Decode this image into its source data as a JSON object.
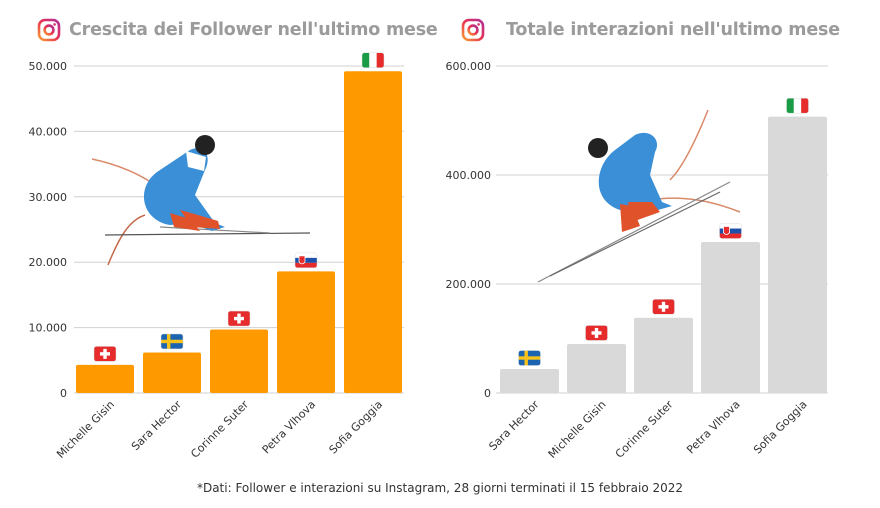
{
  "colors": {
    "left_bar": "#FF9900",
    "right_bar": "#D9D9D9",
    "grid": "#d0d0d0",
    "axis_text": "#333333",
    "title": "#9b9b9b"
  },
  "icons": [
    "instagram-icon",
    "skier-illustration"
  ],
  "footnote": "*Dati: Follower e interazioni su Instagram, 28 giorni terminati il 15 febbraio 2022",
  "chart_data": [
    {
      "type": "bar",
      "title": "Crescita dei Follower nell'ultimo mese",
      "categories": [
        "Michelle Gisin",
        "Sara Hector",
        "Corinne Suter",
        "Petra Vlhova",
        "Sofia Goggia"
      ],
      "flags": [
        "CH",
        "SE",
        "CH",
        "SK",
        "IT"
      ],
      "values": [
        4300,
        6200,
        9700,
        18600,
        49200
      ],
      "ylim": [
        0,
        50000
      ],
      "yticks": [
        0,
        10000,
        20000,
        30000,
        40000,
        50000
      ],
      "ytick_labels": [
        "0",
        "10.000",
        "20.000",
        "30.000",
        "40.000",
        "50.000"
      ],
      "grid": true
    },
    {
      "type": "bar",
      "title": "Totale interazioni nell'ultimo mese",
      "categories": [
        "Sara Hector",
        "Michelle Gisin",
        "Corinne Suter",
        "Petra Vlhova",
        "Sofia Goggia"
      ],
      "flags": [
        "SE",
        "CH",
        "CH",
        "SK",
        "IT"
      ],
      "values": [
        44000,
        90000,
        138000,
        277000,
        507000
      ],
      "ylim": [
        0,
        600000
      ],
      "yticks": [
        0,
        200000,
        400000,
        600000
      ],
      "ytick_labels": [
        "0",
        "200.000",
        "400.000",
        "600.000"
      ],
      "grid": true
    }
  ]
}
